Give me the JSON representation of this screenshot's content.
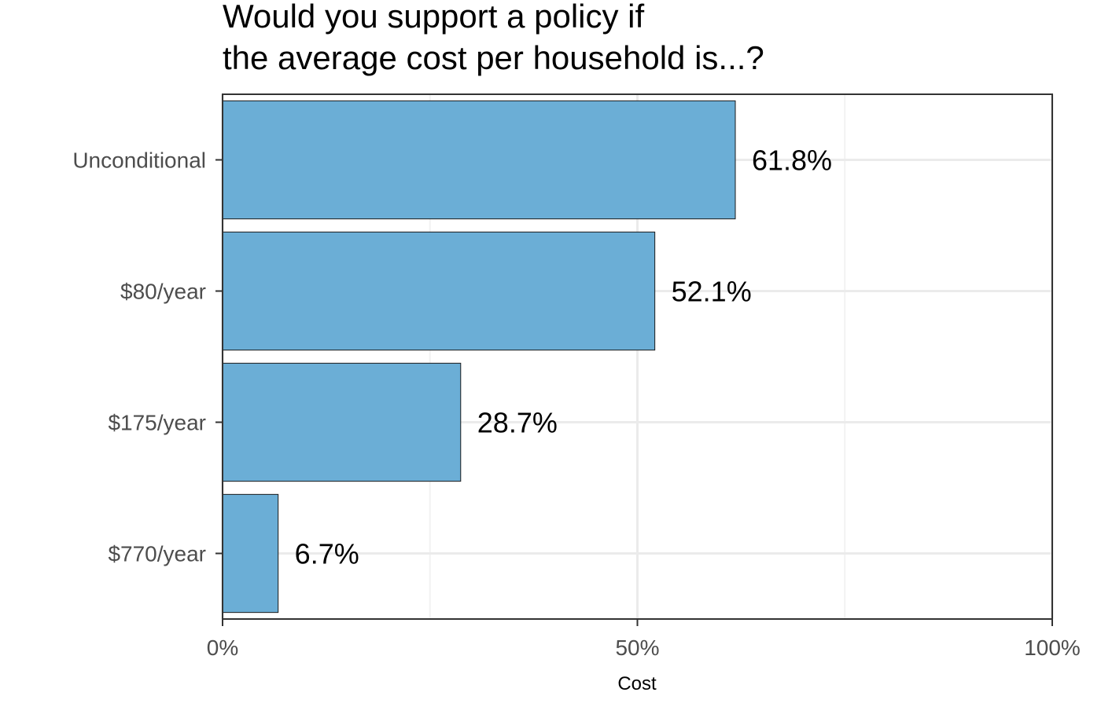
{
  "chart_data": {
    "type": "bar",
    "orientation": "horizontal",
    "title_lines": [
      "Would you support a policy if",
      "the average cost per household is...?"
    ],
    "categories": [
      "Unconditional",
      "$80/year",
      "$175/year",
      "$770/year"
    ],
    "values": [
      61.8,
      52.1,
      28.7,
      6.7
    ],
    "data_labels": [
      "61.8%",
      "52.1%",
      "28.7%",
      "6.7%"
    ],
    "xlabel": "Cost",
    "ylabel": "",
    "xlim": [
      0,
      100
    ],
    "x_ticks": [
      0,
      50,
      100
    ],
    "x_tick_labels": [
      "0%",
      "50%",
      "100%"
    ],
    "grid": true,
    "colors": {
      "bar_fill": "#6baed6",
      "bar_stroke": "#1a1a1a",
      "grid_major": "#ebebeb",
      "grid_minor": "#f2f2f2",
      "panel_border": "#333333"
    }
  }
}
